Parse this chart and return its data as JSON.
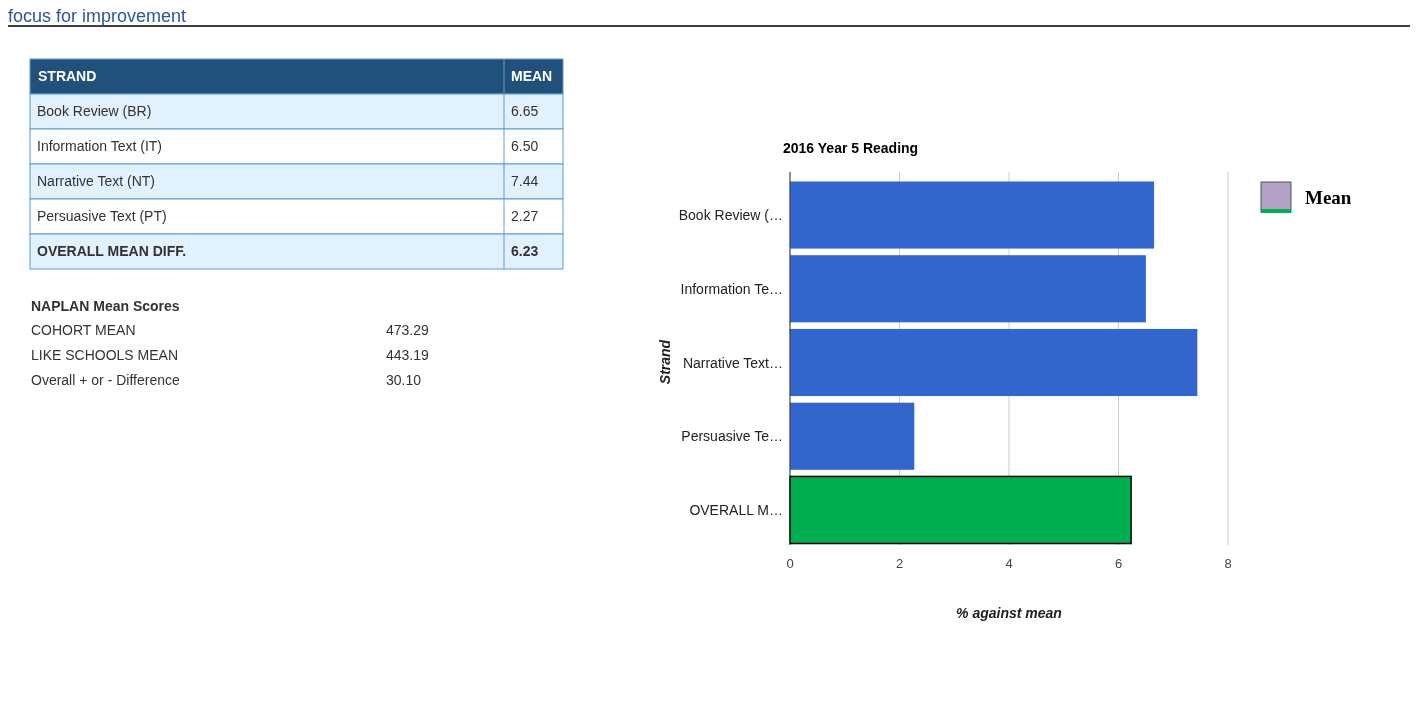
{
  "chart_data": {
    "type": "bar",
    "orientation": "horizontal",
    "title": "2016 Year 5 Reading",
    "xlabel": "% against mean",
    "ylabel": "Strand",
    "categories": [
      "Book Review (…",
      "Information Te…",
      "Narrative Text…",
      "Persuasive Te…",
      "OVERALL M…"
    ],
    "series": [
      {
        "name": "Mean",
        "color": "#b3a2c7",
        "values": [
          6.65,
          6.5,
          7.44,
          2.27,
          6.23
        ],
        "colors": [
          "#3366cc",
          "#3366cc",
          "#3366cc",
          "#3366cc",
          "#00b050"
        ]
      }
    ],
    "xlim": [
      0,
      8
    ],
    "xticks": [
      0,
      2,
      4,
      6,
      8
    ],
    "grid": "x",
    "legend": "top right",
    "annotations": [
      "STRAND",
      "MEAN",
      "Book Review (BR)",
      "6.65",
      "Information Text (IT)",
      "6.50",
      "Narrative Text (NT)",
      "7.44",
      "Persuasive Text (PT)",
      "2.27",
      "OVERALL MEAN DIFF.",
      "6.23",
      "NAPLAN Mean Scores",
      "COHORT MEAN",
      "473.29",
      "LIKE SCHOOLS MEAN",
      "443.19",
      "Overall + or - Difference",
      "30.10",
      "focus for improvement"
    ]
  }
}
